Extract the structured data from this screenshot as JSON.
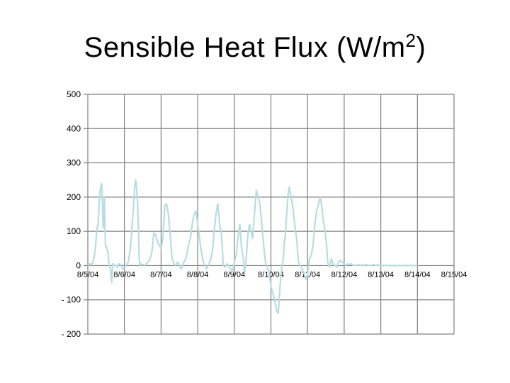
{
  "title": {
    "main": "Sensible Heat Flux (W/m",
    "sup": "2",
    "close": ")"
  },
  "chart_data": {
    "type": "line",
    "title": "Sensible Heat Flux (W/m2)",
    "xlabel": "",
    "ylabel": "",
    "ylim": [
      -200,
      500
    ],
    "yticks": [
      500,
      400,
      300,
      200,
      100,
      0,
      -100,
      -200
    ],
    "ytick_labels": [
      "500",
      "400",
      "300",
      "200",
      "100",
      "0",
      "- 100",
      "- 200"
    ],
    "xlim": [
      "8/5/04",
      "8/15/04"
    ],
    "xtick_labels": [
      "8/5/04",
      "8/6/04",
      "8/7/04",
      "8/8/04",
      "8/9/04",
      "8/10/04",
      "8/11/04",
      "8/12/04",
      "8/13/04",
      "8/14/04",
      "8/15/04"
    ],
    "grid": true,
    "series_color": "#b7dde2",
    "series": [
      {
        "x": [
          1.0,
          1.05,
          1.1,
          1.15,
          1.2,
          1.25,
          1.28,
          1.32,
          1.35,
          1.38,
          1.42,
          1.45,
          1.48,
          1.52,
          1.55,
          1.58,
          1.62,
          1.65,
          1.68,
          1.72,
          1.75,
          1.8,
          1.85,
          1.9,
          1.95,
          2.0,
          2.05,
          2.1,
          2.15,
          2.2,
          2.25,
          2.28,
          2.3,
          2.32,
          2.35,
          2.38,
          2.4,
          2.42,
          2.45,
          2.48,
          2.52,
          2.55,
          2.6,
          2.65,
          2.7,
          2.75,
          2.8,
          2.85,
          2.9,
          2.95,
          3.0,
          3.05,
          3.1,
          3.15,
          3.2,
          3.25,
          3.3,
          3.35,
          3.4,
          3.45,
          3.5,
          3.55,
          3.6,
          3.65,
          3.7,
          3.75,
          3.8,
          3.85,
          3.9,
          3.95,
          4.0,
          4.05,
          4.1,
          4.15,
          4.2,
          4.25,
          4.3,
          4.35,
          4.4,
          4.45,
          4.5,
          4.55,
          4.6,
          4.65,
          4.7,
          4.75,
          4.8,
          4.85,
          4.9,
          4.95,
          5.0,
          5.05,
          5.1,
          5.15,
          5.2,
          5.25,
          5.28,
          5.32,
          5.35,
          5.38,
          5.42,
          5.45,
          5.5,
          5.55,
          5.6,
          5.65,
          5.7,
          5.75,
          5.8,
          5.85,
          5.9,
          5.95,
          6.0,
          6.05,
          6.1,
          6.15,
          6.2,
          6.25,
          6.3,
          6.33,
          6.36,
          6.4,
          6.43,
          6.46,
          6.5,
          6.55,
          6.6,
          6.65,
          6.7,
          6.75,
          6.8,
          6.85,
          6.9,
          6.95,
          7.0,
          7.05,
          7.1,
          7.15,
          7.2,
          7.25,
          7.3,
          7.35,
          7.38,
          7.42,
          7.45,
          7.48,
          7.52,
          7.55,
          7.6,
          7.65,
          7.7,
          7.75,
          7.8,
          7.85,
          7.9,
          7.95,
          8.0,
          8.05,
          8.1,
          8.15,
          8.2,
          8.25,
          8.3,
          8.35,
          8.4,
          8.45,
          8.5,
          8.55,
          8.6,
          8.65,
          8.7,
          8.75,
          8.8,
          8.85,
          8.9,
          8.95,
          9.0,
          9.05,
          9.1,
          9.15,
          9.2,
          9.25,
          9.3,
          9.35,
          9.4,
          9.45,
          9.5,
          9.55,
          9.6,
          9.65,
          9.7,
          9.75,
          9.8,
          9.85,
          9.9,
          9.95,
          10.0
        ],
        "y": [
          0,
          5,
          2,
          15,
          40,
          110,
          120,
          200,
          230,
          240,
          110,
          200,
          60,
          50,
          40,
          0,
          -10,
          -50,
          5,
          0,
          2,
          -5,
          5,
          3,
          -10,
          -5,
          0,
          10,
          40,
          100,
          180,
          230,
          250,
          240,
          200,
          120,
          30,
          0,
          5,
          2,
          3,
          0,
          5,
          10,
          20,
          40,
          95,
          90,
          70,
          60,
          50,
          80,
          175,
          180,
          150,
          90,
          20,
          5,
          0,
          10,
          3,
          -10,
          5,
          15,
          30,
          60,
          80,
          120,
          150,
          160,
          120,
          80,
          40,
          10,
          0,
          -10,
          5,
          15,
          40,
          100,
          150,
          180,
          120,
          90,
          0,
          -5,
          5,
          0,
          -10,
          -20,
          10,
          30,
          80,
          120,
          50,
          20,
          -20,
          10,
          60,
          100,
          120,
          100,
          80,
          150,
          220,
          200,
          180,
          120,
          60,
          10,
          -5,
          -20,
          -60,
          -80,
          -100,
          -130,
          -140,
          -60,
          0,
          10,
          60,
          100,
          150,
          200,
          230,
          200,
          170,
          120,
          80,
          10,
          0,
          -10,
          -20,
          -40,
          -30,
          20,
          30,
          60,
          120,
          160,
          180,
          200,
          180,
          140,
          120,
          100,
          60,
          10,
          -5,
          20,
          5,
          0,
          -5,
          10,
          15,
          10,
          5,
          0,
          5,
          3,
          5,
          0,
          2,
          0,
          3,
          0,
          2,
          0,
          3,
          0,
          2,
          0,
          3,
          0,
          2,
          0,
          0,
          0,
          0,
          0,
          0,
          0,
          0,
          0,
          0,
          0,
          0,
          0,
          0,
          0,
          0,
          0,
          0,
          0,
          0,
          0,
          0
        ]
      }
    ]
  }
}
